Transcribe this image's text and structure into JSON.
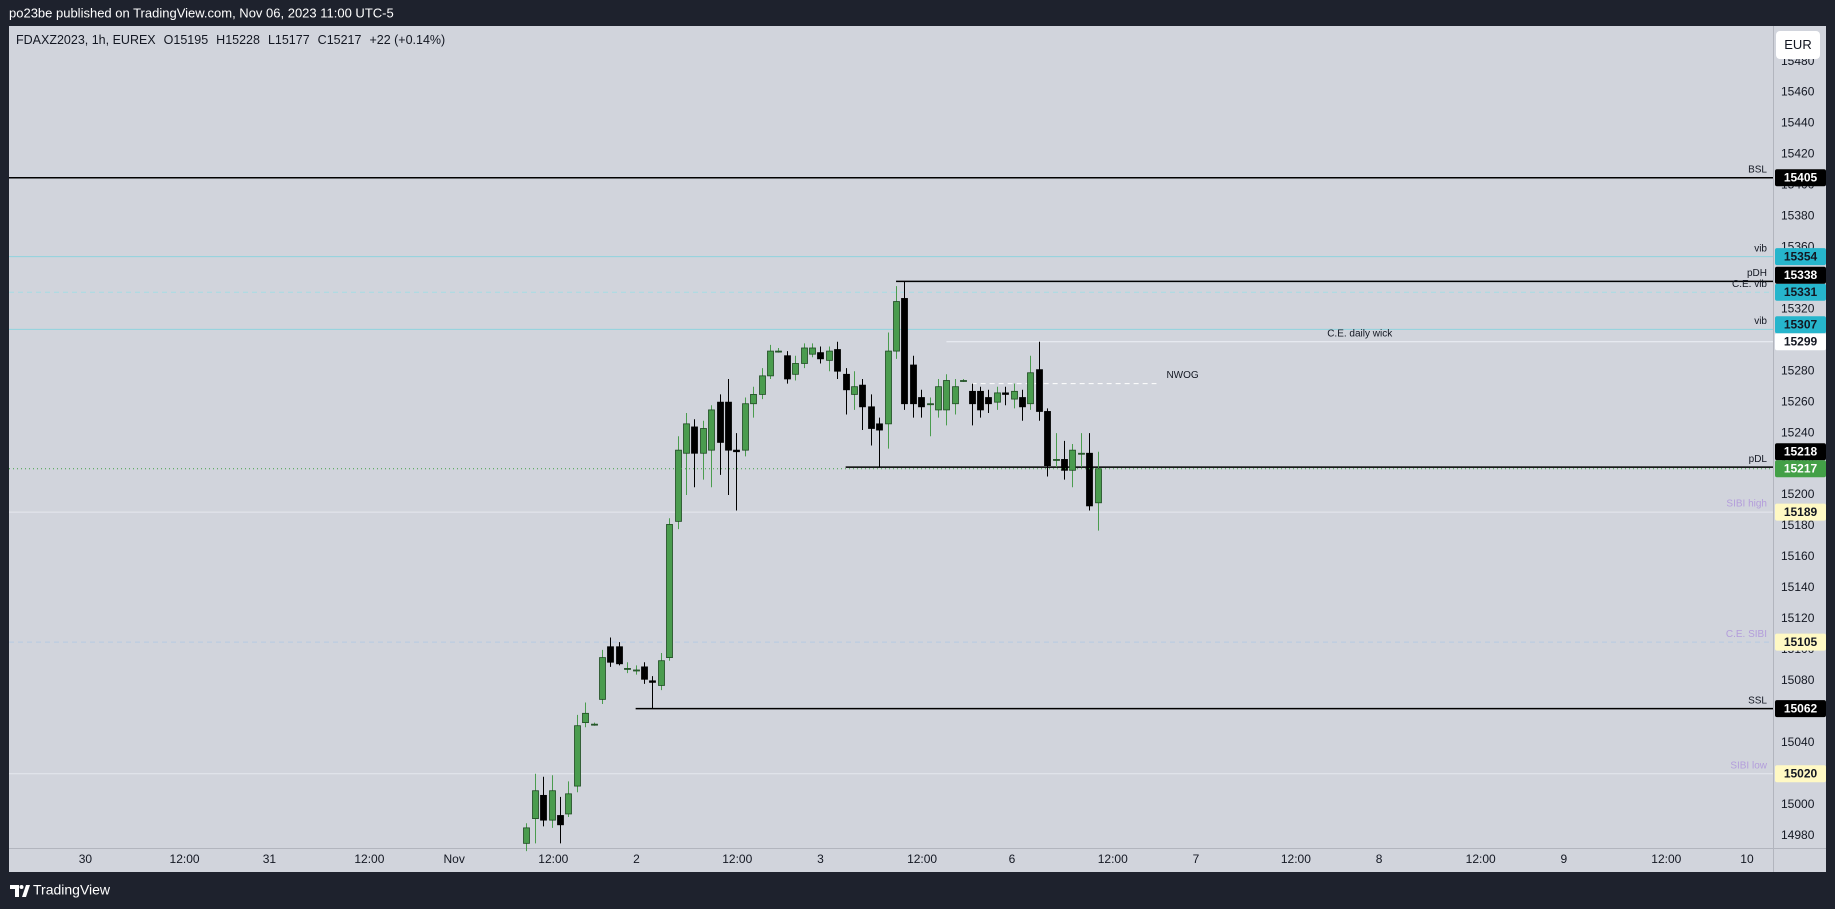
{
  "header": {
    "published": "po23be published on TradingView.com, Nov 06, 2023 11:00 UTC-5",
    "brand": "TradingView",
    "currency": "EUR"
  },
  "chart_data": {
    "type": "candlestick",
    "symbol": "FDAXZ2023, 1h, EUREX",
    "ohlc_prefixes": [
      "O",
      "H",
      "L",
      "C"
    ],
    "change": "+22 (+0.14%)",
    "x": [
      0,
      1,
      2,
      3,
      4,
      5,
      6,
      7,
      8,
      9,
      10,
      11,
      12,
      13,
      14,
      15,
      16,
      17,
      18,
      19,
      20,
      21,
      22,
      23,
      24,
      25,
      26,
      27,
      28,
      29,
      30,
      31,
      32,
      33,
      34,
      35,
      36,
      37,
      38,
      39,
      40,
      41,
      42,
      43,
      44,
      45,
      46,
      47,
      48,
      49,
      50,
      51,
      52,
      53,
      54,
      55,
      56,
      57,
      58,
      59,
      60,
      61,
      62,
      63,
      64,
      65,
      66,
      67,
      68
    ],
    "open": [
      14975,
      14991,
      15006,
      14990,
      14993,
      14994,
      15012,
      15053,
      15052,
      15068,
      15102,
      15102,
      15088,
      15087,
      15089,
      15080,
      15077,
      15095,
      15183,
      15227,
      15244,
      15227,
      15229,
      15260,
      15260,
      15229,
      15229,
      15259,
      15265,
      15277,
      15293,
      15290,
      15278,
      15285,
      15291,
      15292,
      15287,
      15294,
      15278,
      15265,
      15271,
      15257,
      15246,
      15246,
      15293,
      15327,
      15284,
      15263,
      15259,
      15255,
      15255,
      15259,
      15274,
      15267,
      15267,
      15263,
      15260,
      15266,
      15262,
      15263,
      15259,
      15281,
      15254,
      15223,
      15223,
      15216,
      15227,
      15227,
      15195
    ],
    "high": [
      14988,
      15020,
      15018,
      15019,
      15005,
      15015,
      15058,
      15066,
      15053,
      15100,
      15108,
      15105,
      15092,
      15090,
      15092,
      15083,
      15098,
      15185,
      15238,
      15253,
      15249,
      15248,
      15258,
      15265,
      15275,
      15240,
      15263,
      15270,
      15282,
      15297,
      15295,
      15293,
      15290,
      15298,
      15298,
      15296,
      15296,
      15299,
      15282,
      15280,
      15275,
      15265,
      15250,
      15305,
      15335,
      15338,
      15290,
      15268,
      15263,
      15275,
      15278,
      15275,
      15275,
      15272,
      15270,
      15268,
      15270,
      15270,
      15272,
      15268,
      15290,
      15299,
      15256,
      15240,
      15235,
      15233,
      15240,
      15240,
      15228
    ],
    "low": [
      14970,
      14975,
      14986,
      14985,
      14975,
      14992,
      15008,
      15050,
      15051,
      15065,
      15089,
      15090,
      15085,
      15084,
      15078,
      15062,
      15074,
      15093,
      15178,
      15200,
      15205,
      15210,
      15205,
      15213,
      15200,
      15190,
      15225,
      15250,
      15262,
      15275,
      15292,
      15272,
      15274,
      15282,
      15289,
      15285,
      15280,
      15275,
      15252,
      15255,
      15242,
      15232,
      15218,
      15230,
      15288,
      15255,
      15250,
      15250,
      15238,
      15250,
      15245,
      15252,
      15273,
      15245,
      15250,
      15253,
      15255,
      15258,
      15256,
      15248,
      15255,
      15248,
      15212,
      15218,
      15210,
      15205,
      15218,
      15190,
      15177
    ],
    "close": [
      14985,
      15009,
      14990,
      15009,
      14987,
      15007,
      15051,
      15059,
      15052,
      15095,
      15092,
      15091,
      15088,
      15087,
      15081,
      15079,
      15093,
      15181,
      15229,
      15246,
      15227,
      15243,
      15255,
      15234,
      15229,
      15228,
      15259,
      15265,
      15277,
      15293,
      15293,
      15275,
      15285,
      15295,
      15295,
      15288,
      15293,
      15280,
      15268,
      15270,
      15257,
      15243,
      15242,
      15293,
      15325,
      15259,
      15259,
      15257,
      15259,
      15270,
      15274,
      15270,
      15274,
      15259,
      15255,
      15259,
      15266,
      15265,
      15267,
      15257,
      15279,
      15254,
      15219,
      15223,
      15216,
      15229,
      15227,
      15193,
      15217
    ],
    "up_color": "#4a9c4e",
    "up_border": "#1e4a22",
    "down_color": "#000000",
    "last_color": "#43a047",
    "xlim": [
      -61.6,
      148.4
    ],
    "xticks": [
      {
        "value": -52.5,
        "label": "30"
      },
      {
        "value": -40.7,
        "label": "12:00"
      },
      {
        "value": -30.6,
        "label": "31"
      },
      {
        "value": -18.7,
        "label": "12:00"
      },
      {
        "value": -8.6,
        "label": "Nov"
      },
      {
        "value": 3.2,
        "label": "12:00"
      },
      {
        "value": 13.1,
        "label": "2"
      },
      {
        "value": 25.1,
        "label": "12:00"
      },
      {
        "value": 35.0,
        "label": "3"
      },
      {
        "value": 47.1,
        "label": "12:00"
      },
      {
        "value": 57.8,
        "label": "6"
      },
      {
        "value": 69.8,
        "label": "12:00"
      },
      {
        "value": 79.7,
        "label": "7"
      },
      {
        "value": 91.6,
        "label": "12:00"
      },
      {
        "value": 101.5,
        "label": "8"
      },
      {
        "value": 113.6,
        "label": "12:00"
      },
      {
        "value": 123.5,
        "label": "9"
      },
      {
        "value": 135.7,
        "label": "12:00"
      },
      {
        "value": 145.3,
        "label": "10"
      }
    ],
    "ylim": [
      14972,
      15503
    ],
    "yticks": [
      14980,
      15000,
      15020,
      15040,
      15060,
      15080,
      15100,
      15120,
      15140,
      15160,
      15180,
      15200,
      15220,
      15240,
      15260,
      15280,
      15300,
      15320,
      15340,
      15360,
      15380,
      15400,
      15420,
      15440,
      15460,
      15480
    ],
    "grid": false,
    "levels": [
      {
        "name": "BSL",
        "value": 15405,
        "color": "#000000",
        "width": 1.5,
        "tag": "#000000",
        "tag_text": "#ffffff",
        "label_color": "#131722"
      },
      {
        "name": "vib",
        "value": 15354,
        "color": "#8fd3de",
        "tag": "#26b5cc",
        "tag_text": "#131722",
        "label_color": "#131722"
      },
      {
        "name": "pDH",
        "value": 15338,
        "color": "#000000",
        "width": 1.5,
        "start": 44,
        "tag": "#000000",
        "tag_text": "#ffffff",
        "label_color": "#131722"
      },
      {
        "name": "C.E. vib",
        "value": 15331,
        "color": "#a6dbe4",
        "dash": true,
        "tag": "#26b5cc",
        "tag_text": "#131722",
        "label_color": "#131722"
      },
      {
        "name": "vib",
        "value": 15307,
        "color": "#8fd3de",
        "tag": "#26b5cc",
        "tag_text": "#131722",
        "label_color": "#131722"
      },
      {
        "name": "C.E. daily wick",
        "value": 15299,
        "color": "#eef0f6",
        "start": 50,
        "label_align": "center",
        "tag": "#ffffff",
        "tag_text": "#131722",
        "label_color": "#131722"
      },
      {
        "name": "NWOG",
        "value": 15272,
        "color": "#ffffff",
        "dash": true,
        "start": 53,
        "end": 75,
        "label_align": "after",
        "label_color": "#131722"
      },
      {
        "name": "pDL",
        "value": 15218,
        "color": "#000000",
        "width": 1.5,
        "start": 38,
        "tag": "#000000",
        "tag_text": "#ffffff",
        "label_color": "#131722"
      },
      {
        "name": "SIBI high",
        "value": 15189,
        "color": "#e6e8ee",
        "tag": "#fff9c4",
        "tag_text": "#131722",
        "label_color": "#b39ddb"
      },
      {
        "name": "C.E. SIBI",
        "value": 15105,
        "color": "#b7c9e2",
        "dash": true,
        "tag": "#fff9c4",
        "tag_text": "#131722",
        "label_color": "#b39ddb"
      },
      {
        "name": "SSL",
        "value": 15062,
        "color": "#000000",
        "width": 1.5,
        "start": 13,
        "tag": "#000000",
        "tag_text": "#ffffff",
        "label_color": "#131722"
      },
      {
        "name": "SIBI low",
        "value": 15020,
        "color": "#e6e8ee",
        "tag": "#fff9c4",
        "tag_text": "#131722",
        "label_color": "#b39ddb"
      }
    ]
  }
}
